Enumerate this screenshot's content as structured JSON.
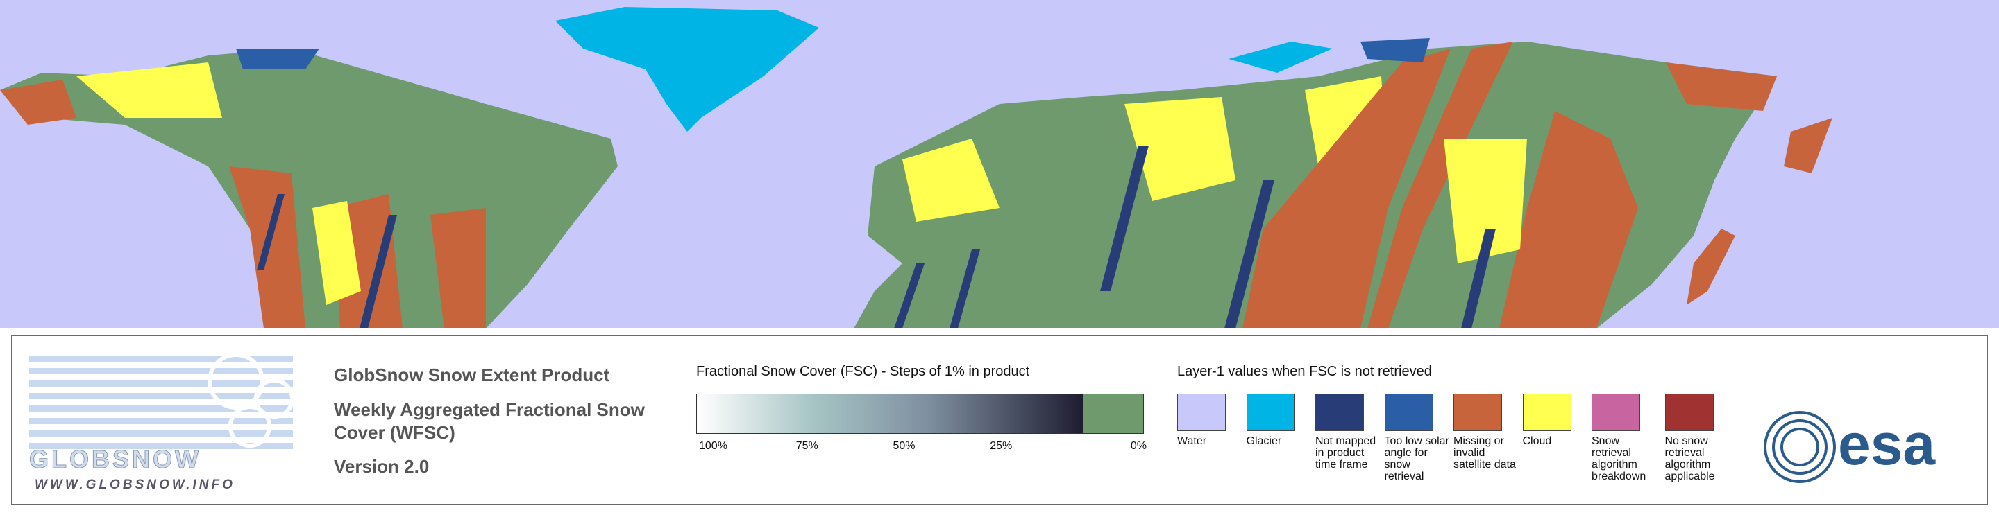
{
  "logo": {
    "name": "GLOBSNOW",
    "url": "WWW.GLOBSNOW.INFO"
  },
  "product": {
    "title": "GlobSnow Snow Extent Product",
    "subtitle": "Weekly Aggregated Fractional Snow Cover (WFSC)",
    "version": "Version 2.0"
  },
  "fsc_scale": {
    "title": "Fractional Snow Cover (FSC) - Steps of 1% in product",
    "ticks": [
      "100%",
      "75%",
      "50%",
      "25%",
      "0%"
    ]
  },
  "layer1": {
    "title": "Layer-1 values when FSC is not retrieved",
    "items": [
      {
        "label": "Water",
        "color": "#c8c8fa"
      },
      {
        "label": "Glacier",
        "color": "#00b4e6"
      },
      {
        "label": "Not mapped in product time frame",
        "color": "#283c78"
      },
      {
        "label": "Too low solar angle for snow retrieval",
        "color": "#2a5fa8"
      },
      {
        "label": "Missing or invalid satellite data",
        "color": "#c8643c"
      },
      {
        "label": "Cloud",
        "color": "#ffff50"
      },
      {
        "label": "Snow retrieval algorithm breakdown",
        "color": "#c864a0"
      },
      {
        "label": "No snow retrieval algorithm applicable",
        "color": "#a03232"
      }
    ]
  },
  "agency": "esa"
}
